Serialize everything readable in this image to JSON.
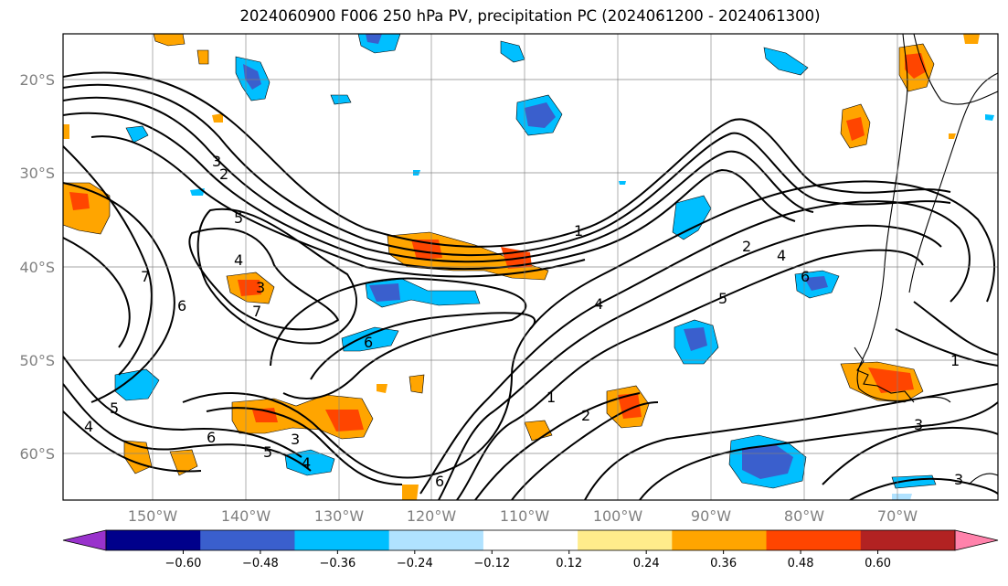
{
  "title": "2024060900 F006 250 hPa PV, precipitation PC (2024061200 - 2024061300)",
  "map": {
    "lat_labels": [
      "20°S",
      "30°S",
      "40°S",
      "50°S",
      "60°S"
    ],
    "lon_labels": [
      "150°W",
      "140°W",
      "130°W",
      "120°W",
      "110°W",
      "100°W",
      "90°W",
      "80°W",
      "70°W"
    ],
    "pv_contour_labels": [
      "1",
      "2",
      "3",
      "4",
      "5",
      "6",
      "7"
    ],
    "grid": true
  },
  "colorbar": {
    "ticks": [
      "−0.60",
      "−0.48",
      "−0.36",
      "−0.24",
      "−0.12",
      "0.12",
      "0.24",
      "0.36",
      "0.48",
      "0.60"
    ],
    "colors": [
      "#9932cc",
      "#00008b",
      "#3a5fcd",
      "#00bfff",
      "#b0e2ff",
      "#ffffff",
      "#ffec8b",
      "#ffa500",
      "#ff4500",
      "#b22222",
      "#ff82ab"
    ]
  },
  "palette": {
    "dark_blue": "#3a5fcd",
    "blue": "#00bfff",
    "light_blue": "#b0e2ff",
    "yellow": "#ffec8b",
    "orange": "#ffa500",
    "red": "#ff4500",
    "navy": "#00008b"
  }
}
